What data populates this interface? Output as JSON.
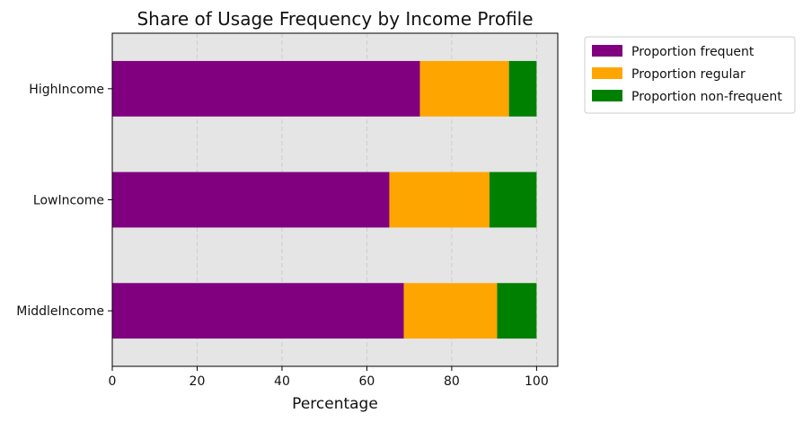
{
  "chart_data": {
    "type": "bar",
    "orientation": "horizontal",
    "stacked": true,
    "title": "Share of Usage Frequency by Income Profile",
    "xlabel": "Percentage",
    "ylabel": "",
    "xlim": [
      0,
      105
    ],
    "xticks": [
      0,
      20,
      40,
      60,
      80,
      100
    ],
    "grid": "vertical-dashed",
    "legend_position": "outside-top-right",
    "categories": [
      "HighIncome",
      "LowIncome",
      "MiddleIncome"
    ],
    "series": [
      {
        "name": "Proportion frequent",
        "color": "#800080",
        "values": [
          72.5,
          65.3,
          68.7
        ]
      },
      {
        "name": "Proportion regular",
        "color": "#FFA500",
        "values": [
          21.0,
          23.6,
          22.0
        ]
      },
      {
        "name": "Proportion non-frequent",
        "color": "#008000",
        "values": [
          6.5,
          11.1,
          9.3
        ]
      }
    ],
    "plot_background": "#E5E5E5"
  }
}
